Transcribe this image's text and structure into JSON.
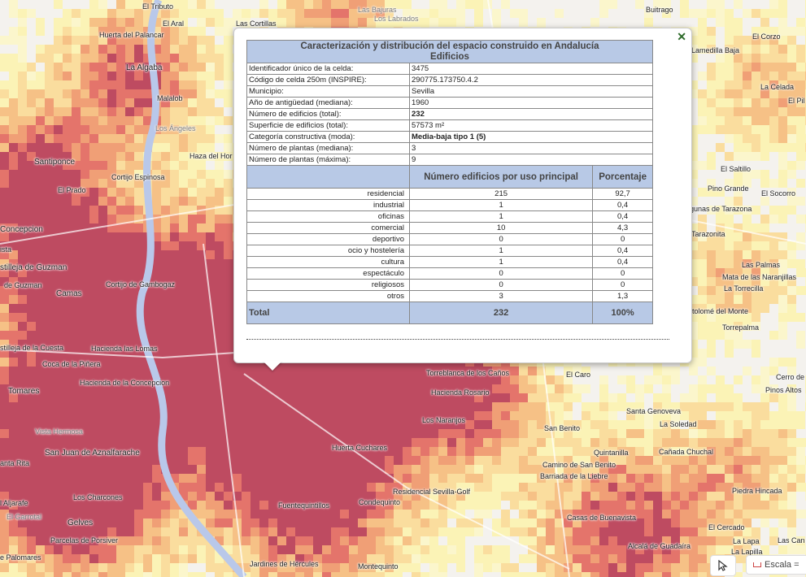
{
  "popup": {
    "title": "Caracterización y distribución del espacio construido en Andalucía",
    "subtitle": "Edificios",
    "attributes": [
      {
        "label": "Identificador único de la celda:",
        "value": "3475",
        "bold": false
      },
      {
        "label": "Código de celda 250m (INSPIRE):",
        "value": "290775.173750.4.2",
        "bold": false
      },
      {
        "label": "Municipio:",
        "value": "Sevilla",
        "bold": false
      },
      {
        "label": "Año de antigüedad (mediana):",
        "value": "1960",
        "bold": false
      },
      {
        "label": "Número de edificios (total):",
        "value": "232",
        "bold": true
      },
      {
        "label": "Superficie de edificios (total):",
        "value": "57573 m²",
        "bold": false
      },
      {
        "label": "Categoría constructiva (moda):",
        "value": "Media-baja tipo 1 (5)",
        "bold": true
      },
      {
        "label": "Número de plantas (mediana):",
        "value": "3",
        "bold": false
      },
      {
        "label": "Número de plantas (máxima):",
        "value": "9",
        "bold": false
      }
    ],
    "usage_header_count": "Número edificios por uso principal",
    "usage_header_pct": "Porcentaje",
    "usage": [
      {
        "label": "residencial",
        "count": "215",
        "pct": "92,7"
      },
      {
        "label": "industrial",
        "count": "1",
        "pct": "0,4"
      },
      {
        "label": "oficinas",
        "count": "1",
        "pct": "0,4"
      },
      {
        "label": "comercial",
        "count": "10",
        "pct": "4,3"
      },
      {
        "label": "deportivo",
        "count": "0",
        "pct": "0"
      },
      {
        "label": "ocio y hostelería",
        "count": "1",
        "pct": "0,4"
      },
      {
        "label": "cultura",
        "count": "1",
        "pct": "0,4"
      },
      {
        "label": "espectáculo",
        "count": "0",
        "pct": "0"
      },
      {
        "label": "religiosos",
        "count": "0",
        "pct": "0"
      },
      {
        "label": "otros",
        "count": "3",
        "pct": "1,3"
      }
    ],
    "total_label": "Total",
    "total_count": "232",
    "total_pct": "100%",
    "close_icon": "✕"
  },
  "controls": {
    "scale_label": "Escala ="
  },
  "colors": {
    "header": "#b8c9e6",
    "river": "#b9c8ea",
    "heat_low": "#fdf2a8",
    "heat_mid": "#f6b46b",
    "heat_high": "#e0544a",
    "heat_max": "#b0213d"
  },
  "places": [
    {
      "name": "El Tributo",
      "grey": false
    },
    {
      "name": "Las Cortillas",
      "grey": false
    },
    {
      "name": "Las Bajuras",
      "grey": true
    },
    {
      "name": "Los Labrados",
      "grey": true
    },
    {
      "name": "Buitrago",
      "grey": false
    },
    {
      "name": "El Aral",
      "grey": false
    },
    {
      "name": "Huerta del Palancar",
      "grey": false
    },
    {
      "name": "La Algaba",
      "grey": false
    },
    {
      "name": "El Corzo",
      "grey": false
    },
    {
      "name": "Lamedilla Baja",
      "grey": false
    },
    {
      "name": "Malalob",
      "grey": false
    },
    {
      "name": "Los Ángeles",
      "grey": true
    },
    {
      "name": "La Celada",
      "grey": false
    },
    {
      "name": "El Pil",
      "grey": false
    },
    {
      "name": "Santiponce",
      "grey": false
    },
    {
      "name": "Cortijo Espinosa",
      "grey": false
    },
    {
      "name": "Haza del Hor",
      "grey": false
    },
    {
      "name": "El Prado",
      "grey": false
    },
    {
      "name": "El Saltillo",
      "grey": false
    },
    {
      "name": "Pino Grande",
      "grey": false
    },
    {
      "name": "El Socorro",
      "grey": false
    },
    {
      "name": "igunas de Tarazona",
      "grey": false
    },
    {
      "name": "Concepcion",
      "grey": false
    },
    {
      "name": "ista",
      "grey": false
    },
    {
      "name": "stilleja de Guzman",
      "grey": false
    },
    {
      "name": "de Guzman",
      "grey": false
    },
    {
      "name": "Camas",
      "grey": false
    },
    {
      "name": "Cortijo de Gambogaz",
      "grey": false
    },
    {
      "name": "Tarazonita",
      "grey": false
    },
    {
      "name": "Las Palmas",
      "grey": false
    },
    {
      "name": "Mata de las Naranjillas",
      "grey": false
    },
    {
      "name": "La Torrecilla",
      "grey": false
    },
    {
      "name": "rtolomé del Monte",
      "grey": false
    },
    {
      "name": "Torrepalma",
      "grey": false
    },
    {
      "name": "stilleja de la Cuesta",
      "grey": false
    },
    {
      "name": "Hacienda las Lomas",
      "grey": false
    },
    {
      "name": "Coca de la Piñera",
      "grey": false
    },
    {
      "name": "Hacienda de la Concepcion",
      "grey": false
    },
    {
      "name": "Torreblanca de los Caños",
      "grey": false
    },
    {
      "name": "El Caro",
      "grey": false
    },
    {
      "name": "Cerro de",
      "grey": false
    },
    {
      "name": "Pinos Altos",
      "grey": false
    },
    {
      "name": "Tomares",
      "grey": false
    },
    {
      "name": "Hacienda Rosario",
      "grey": false
    },
    {
      "name": "Santa Genoveva",
      "grey": false
    },
    {
      "name": "Los Naranjos",
      "grey": false
    },
    {
      "name": "San Benito",
      "grey": false
    },
    {
      "name": "La Soledad",
      "grey": false
    },
    {
      "name": "Vista Hermosa",
      "grey": false
    },
    {
      "name": "Huerta Cuchares",
      "grey": false
    },
    {
      "name": "Quintanilla",
      "grey": false
    },
    {
      "name": "Cañada Chuchal",
      "grey": false
    },
    {
      "name": "San Juan de Aznalfarache",
      "grey": false
    },
    {
      "name": "anta Rita",
      "grey": false
    },
    {
      "name": "Camino de San Benito",
      "grey": false
    },
    {
      "name": "Barriada de la Liebre",
      "grey": false
    },
    {
      "name": "Residencial Sevilla-Golf",
      "grey": false
    },
    {
      "name": "Piedra Hincada",
      "grey": false
    },
    {
      "name": "Los Charcones",
      "grey": false
    },
    {
      "name": "l Aljarafe",
      "grey": false
    },
    {
      "name": "Fuentequintillos",
      "grey": false
    },
    {
      "name": "Condequinto",
      "grey": false
    },
    {
      "name": "El Garrotal",
      "grey": false
    },
    {
      "name": "Gelves",
      "grey": false
    },
    {
      "name": "Casas de Buenavista",
      "grey": false
    },
    {
      "name": "El Cercado",
      "grey": false
    },
    {
      "name": "Parcelas de Porsiver",
      "grey": false
    },
    {
      "name": "La Lapa",
      "grey": false
    },
    {
      "name": "Las Can",
      "grey": false
    },
    {
      "name": "Alcalá de Guadaíra",
      "grey": false
    },
    {
      "name": "La Lapilla",
      "grey": false
    },
    {
      "name": "e Palomares",
      "grey": false
    },
    {
      "name": "Jardines de Hércules",
      "grey": false
    },
    {
      "name": "Montequinto",
      "grey": false
    }
  ]
}
